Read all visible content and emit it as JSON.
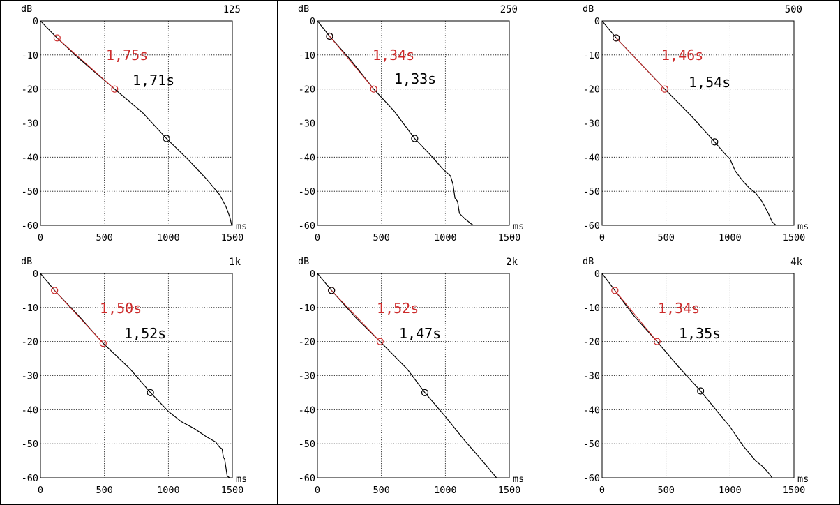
{
  "colors": {
    "red": "#cc2a2a",
    "black": "#000000",
    "background": "#ffffff"
  },
  "chart_data": [
    {
      "type": "line",
      "band": "125",
      "ylabel": "dB",
      "xlabel": "ms",
      "xlim": [
        0,
        1500
      ],
      "ylim": [
        -60,
        0
      ],
      "xticks": [
        "0",
        "500",
        "1000",
        "1500"
      ],
      "yticks": [
        "0",
        "-10",
        "-20",
        "-30",
        "-40",
        "-50",
        "-60"
      ],
      "rt_red": "1,75s",
      "rt_black": "1,71s",
      "series": [
        {
          "x": [
            0,
            130,
            300,
            580,
            800,
            985,
            1150,
            1300,
            1400,
            1450,
            1480,
            1495
          ],
          "y": [
            0,
            -5,
            -11,
            -20,
            -27,
            -34.5,
            -40.5,
            -46.5,
            -51,
            -54.5,
            -57.5,
            -60
          ]
        }
      ],
      "markers_red": [
        {
          "x": 130,
          "y": -5
        },
        {
          "x": 580,
          "y": -20
        }
      ],
      "markers_black": [
        {
          "x": 985,
          "y": -34.5
        }
      ]
    },
    {
      "type": "line",
      "band": "250",
      "ylabel": "dB",
      "xlabel": "ms",
      "xlim": [
        0,
        1500
      ],
      "ylim": [
        -60,
        0
      ],
      "xticks": [
        "0",
        "500",
        "1000",
        "1500"
      ],
      "yticks": [
        "0",
        "-10",
        "-20",
        "-30",
        "-40",
        "-50",
        "-60"
      ],
      "rt_red": "1,34s",
      "rt_black": "1,33s",
      "series": [
        {
          "x": [
            0,
            95,
            250,
            440,
            600,
            760,
            900,
            980,
            1040,
            1060,
            1075,
            1095,
            1110,
            1150,
            1200,
            1220
          ],
          "y": [
            0,
            -4.5,
            -11,
            -20,
            -26.5,
            -34.5,
            -40,
            -43.5,
            -45.5,
            -48,
            -52,
            -53,
            -56.5,
            -58,
            -59.5,
            -60
          ]
        }
      ],
      "markers_red": [
        {
          "x": 95,
          "y": -4.5
        },
        {
          "x": 440,
          "y": -20
        }
      ],
      "markers_black": [
        {
          "x": 95,
          "y": -4.5
        },
        {
          "x": 760,
          "y": -34.5
        }
      ]
    },
    {
      "type": "line",
      "band": "500",
      "ylabel": "dB",
      "xlabel": "ms",
      "xlim": [
        0,
        1500
      ],
      "ylim": [
        -60,
        0
      ],
      "xticks": [
        "0",
        "500",
        "1000",
        "1500"
      ],
      "yticks": [
        "0",
        "-10",
        "-20",
        "-30",
        "-40",
        "-50",
        "-60"
      ],
      "rt_red": "1,46s",
      "rt_black": "1,54s",
      "series": [
        {
          "x": [
            0,
            110,
            300,
            490,
            700,
            880,
            960,
            1000,
            1040,
            1100,
            1150,
            1200,
            1250,
            1300,
            1330,
            1360
          ],
          "y": [
            0,
            -5,
            -12.5,
            -20,
            -28,
            -35.5,
            -39,
            -40.5,
            -44,
            -47,
            -49,
            -50.5,
            -53,
            -56.5,
            -59,
            -60
          ]
        }
      ],
      "markers_red": [
        {
          "x": 110,
          "y": -5
        },
        {
          "x": 490,
          "y": -20
        }
      ],
      "markers_black": [
        {
          "x": 110,
          "y": -5
        },
        {
          "x": 880,
          "y": -35.5
        }
      ]
    },
    {
      "type": "line",
      "band": "1k",
      "ylabel": "dB",
      "xlabel": "ms",
      "xlim": [
        0,
        1500
      ],
      "ylim": [
        -60,
        0
      ],
      "xticks": [
        "0",
        "500",
        "1000",
        "1500"
      ],
      "yticks": [
        "0",
        "-10",
        "-20",
        "-30",
        "-40",
        "-50",
        "-60"
      ],
      "rt_red": "1,50s",
      "rt_black": "1,52s",
      "series": [
        {
          "x": [
            0,
            110,
            300,
            490,
            700,
            860,
            1000,
            1100,
            1200,
            1300,
            1370,
            1400,
            1420,
            1430,
            1440,
            1450,
            1460,
            1480
          ],
          "y": [
            0,
            -5,
            -12.5,
            -20.5,
            -28,
            -35,
            -40.5,
            -43.5,
            -45.5,
            -48,
            -49.5,
            -51,
            -51.5,
            -54,
            -54.5,
            -57,
            -59.5,
            -60
          ]
        }
      ],
      "markers_red": [
        {
          "x": 110,
          "y": -5
        },
        {
          "x": 490,
          "y": -20.5
        }
      ],
      "markers_black": [
        {
          "x": 860,
          "y": -35
        }
      ]
    },
    {
      "type": "line",
      "band": "2k",
      "ylabel": "dB",
      "xlabel": "ms",
      "xlim": [
        0,
        1500
      ],
      "ylim": [
        -60,
        0
      ],
      "xticks": [
        "0",
        "500",
        "1000",
        "1500"
      ],
      "yticks": [
        "0",
        "-10",
        "-20",
        "-30",
        "-40",
        "-50",
        "-60"
      ],
      "rt_red": "1,52s",
      "rt_black": "1,47s",
      "series": [
        {
          "x": [
            0,
            110,
            300,
            490,
            700,
            840,
            1000,
            1150,
            1300,
            1400
          ],
          "y": [
            0,
            -5,
            -13,
            -20,
            -28,
            -35,
            -42,
            -49,
            -55.5,
            -60
          ]
        }
      ],
      "markers_red": [
        {
          "x": 110,
          "y": -5
        },
        {
          "x": 490,
          "y": -20
        }
      ],
      "markers_black": [
        {
          "x": 110,
          "y": -5
        },
        {
          "x": 840,
          "y": -35
        }
      ]
    },
    {
      "type": "line",
      "band": "4k",
      "ylabel": "dB",
      "xlabel": "ms",
      "xlim": [
        0,
        1500
      ],
      "ylim": [
        -60,
        0
      ],
      "xticks": [
        "0",
        "500",
        "1000",
        "1500"
      ],
      "yticks": [
        "0",
        "-10",
        "-20",
        "-30",
        "-40",
        "-50",
        "-60"
      ],
      "rt_red": "1,34s",
      "rt_black": "1,35s",
      "series": [
        {
          "x": [
            0,
            100,
            250,
            430,
            600,
            770,
            900,
            1000,
            1100,
            1200,
            1250,
            1300,
            1330
          ],
          "y": [
            0,
            -5,
            -12.5,
            -20,
            -27.5,
            -34.5,
            -40.5,
            -45,
            -50.5,
            -55,
            -56.5,
            -58.5,
            -60
          ]
        }
      ],
      "markers_red": [
        {
          "x": 100,
          "y": -5
        },
        {
          "x": 430,
          "y": -20
        }
      ],
      "markers_black": [
        {
          "x": 770,
          "y": -34.5
        }
      ]
    }
  ]
}
